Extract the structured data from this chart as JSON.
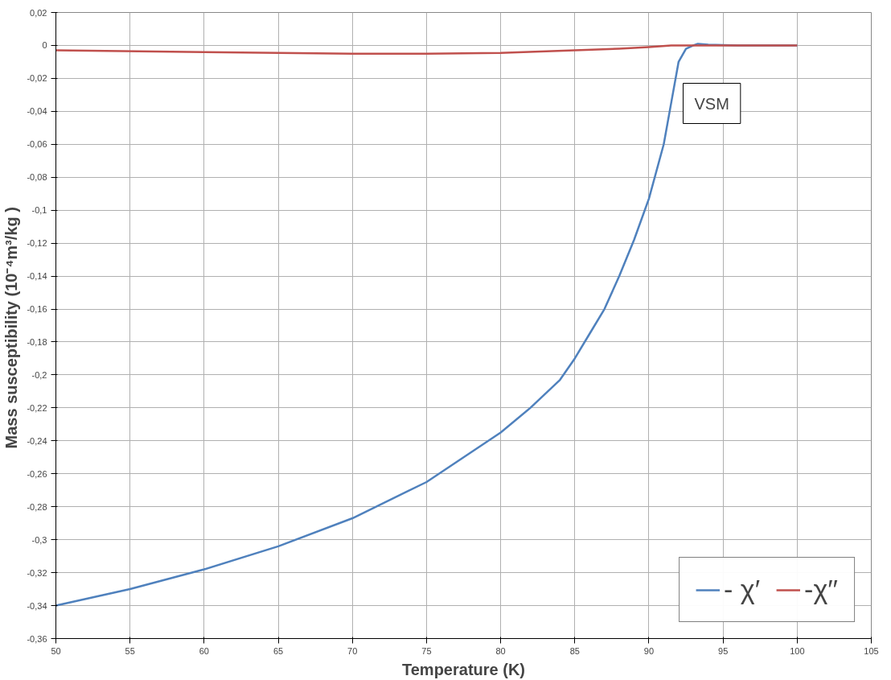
{
  "chart_data": {
    "type": "line",
    "xlabel": "Temperature (K)",
    "ylabel": "Mass  susceptibility (10⁻⁴m³/kg )",
    "annotations": [
      "VSM"
    ],
    "xlim": [
      50,
      105
    ],
    "xticks": [
      50,
      55,
      60,
      65,
      70,
      75,
      80,
      85,
      90,
      95,
      100,
      105
    ],
    "ylim": [
      -0.36,
      0.02
    ],
    "yticks": [
      {
        "value": 0.02,
        "label": "0,02"
      },
      {
        "value": 0,
        "label": "0"
      },
      {
        "value": -0.02,
        "label": "-0,02"
      },
      {
        "value": -0.04,
        "label": "-0,04"
      },
      {
        "value": -0.06,
        "label": "-0,06"
      },
      {
        "value": -0.08,
        "label": "-0,08"
      },
      {
        "value": -0.1,
        "label": "-0,1"
      },
      {
        "value": -0.12,
        "label": "-0,12"
      },
      {
        "value": -0.14,
        "label": "-0,14"
      },
      {
        "value": -0.16,
        "label": "-0,16"
      },
      {
        "value": -0.18,
        "label": "-0,18"
      },
      {
        "value": -0.2,
        "label": "-0,2"
      },
      {
        "value": -0.22,
        "label": "-0,22"
      },
      {
        "value": -0.24,
        "label": "-0,24"
      },
      {
        "value": -0.26,
        "label": "-0,26"
      },
      {
        "value": -0.28,
        "label": "-0,28"
      },
      {
        "value": -0.3,
        "label": "-0,3"
      },
      {
        "value": -0.32,
        "label": "-0,32"
      },
      {
        "value": -0.34,
        "label": "-0,34"
      },
      {
        "value": -0.36,
        "label": "-0,36"
      }
    ],
    "grid": true,
    "legend": "bottom right",
    "marker": "none",
    "line_style": "solid",
    "series": [
      {
        "name": "- χ′",
        "color": "#4f81bd",
        "x": [
          50,
          55,
          60,
          65,
          70,
          75,
          80,
          82,
          84,
          85,
          86,
          87,
          88,
          89,
          90,
          91,
          91.5,
          92,
          92.5,
          93,
          93.3,
          94,
          96,
          100
        ],
        "values": [
          -0.34,
          -0.33,
          -0.318,
          -0.304,
          -0.287,
          -0.265,
          -0.235,
          -0.22,
          -0.203,
          -0.19,
          -0.175,
          -0.16,
          -0.14,
          -0.118,
          -0.093,
          -0.06,
          -0.035,
          -0.01,
          -0.002,
          0.0,
          0.001,
          0.0005,
          0.0,
          0.0
        ]
      },
      {
        "name": "-χ′′",
        "color": "#c0504d",
        "x": [
          50,
          60,
          70,
          75,
          80,
          85,
          88,
          90,
          91.5,
          100
        ],
        "values": [
          -0.003,
          -0.004,
          -0.005,
          -0.005,
          -0.0045,
          -0.003,
          -0.002,
          -0.001,
          0.0,
          0.0
        ]
      }
    ]
  }
}
